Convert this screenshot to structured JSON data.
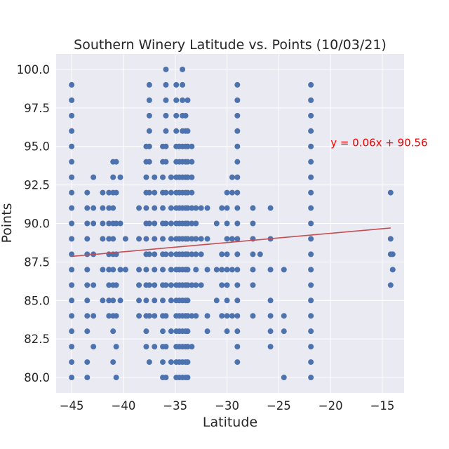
{
  "chart_data": {
    "type": "scatter",
    "title": "Southern Winery Latitude vs. Points (10/03/21)",
    "xlabel": "Latitude",
    "ylabel": "Points",
    "xlim": [
      -46.5,
      -12.9
    ],
    "ylim": [
      79.0,
      101.0
    ],
    "xticks": [
      -45,
      -40,
      -35,
      -30,
      -25,
      -20,
      -15
    ],
    "yticks": [
      80.0,
      82.5,
      85.0,
      87.5,
      90.0,
      92.5,
      95.0,
      97.5,
      100.0
    ],
    "xtick_labels": [
      "−45",
      "−40",
      "−35",
      "−30",
      "−25",
      "−20",
      "−15"
    ],
    "ytick_labels": [
      "80.0",
      "82.5",
      "85.0",
      "87.5",
      "90.0",
      "92.5",
      "95.0",
      "97.5",
      "100.0"
    ],
    "grid": true,
    "background": "#eaeaf2",
    "point_color": "#4c72b0",
    "line_color": "#c44e52",
    "regression": {
      "slope": 0.06,
      "intercept": 90.56,
      "x_range": [
        -45.0,
        -14.2
      ],
      "equation_label": "y = 0.06x + 90.56",
      "label_color": "#ff0000",
      "label_anchor": [
        -20.0,
        95.0
      ]
    },
    "columns": [
      {
        "x": -45.0,
        "y": [
          80,
          81,
          82,
          83,
          84,
          85,
          86,
          87,
          88,
          89,
          90,
          91,
          92,
          93,
          94,
          95,
          96,
          97,
          98,
          99
        ]
      },
      {
        "x": -43.5,
        "y": [
          80,
          81,
          83,
          84,
          85,
          86,
          87,
          88,
          89,
          90,
          91,
          92
        ]
      },
      {
        "x": -42.9,
        "y": [
          82,
          84,
          86,
          88,
          90,
          91,
          93
        ]
      },
      {
        "x": -42.0,
        "y": [
          85,
          87,
          89,
          90,
          91,
          92
        ]
      },
      {
        "x": -41.4,
        "y": [
          84,
          85,
          86,
          87,
          88,
          89,
          90,
          91,
          92
        ]
      },
      {
        "x": -41.0,
        "y": [
          81,
          83,
          84,
          85,
          86,
          87,
          88,
          89,
          90,
          91,
          92,
          93,
          94
        ]
      },
      {
        "x": -40.7,
        "y": [
          80,
          82,
          84,
          86,
          88,
          90,
          92,
          94
        ]
      },
      {
        "x": -40.3,
        "y": [
          85,
          87,
          90,
          93
        ]
      },
      {
        "x": -39.8,
        "y": [
          87,
          89
        ]
      },
      {
        "x": -38.5,
        "y": [
          84,
          85,
          86,
          87,
          89,
          91
        ]
      },
      {
        "x": -37.8,
        "y": [
          82,
          83,
          84,
          85,
          86,
          87,
          88,
          89,
          90,
          91,
          92,
          93,
          94,
          95
        ]
      },
      {
        "x": -37.5,
        "y": [
          81,
          84,
          86,
          88,
          90,
          92,
          94,
          95,
          96,
          97,
          98,
          99
        ]
      },
      {
        "x": -37.0,
        "y": [
          82,
          84,
          85,
          86,
          87,
          88,
          89,
          90,
          91,
          92,
          93
        ]
      },
      {
        "x": -36.2,
        "y": [
          80,
          81,
          82,
          83,
          84,
          85,
          86,
          87,
          88,
          89,
          90,
          91,
          92,
          93,
          94,
          95
        ]
      },
      {
        "x": -35.9,
        "y": [
          80,
          82,
          84,
          86,
          88,
          90,
          92,
          94,
          95,
          96,
          97,
          98,
          99,
          100
        ]
      },
      {
        "x": -35.4,
        "y": [
          81,
          83,
          85,
          86,
          87,
          88,
          89,
          90,
          91,
          92,
          93
        ]
      },
      {
        "x": -34.9,
        "y": [
          80,
          81,
          82,
          83,
          84,
          85,
          86,
          87,
          88,
          89,
          90,
          91,
          92,
          93,
          94,
          95,
          96,
          97,
          98,
          99
        ]
      },
      {
        "x": -34.6,
        "y": [
          80,
          81,
          82,
          83,
          84,
          85,
          86,
          87,
          88,
          89,
          90,
          91,
          92,
          93,
          94,
          95
        ]
      },
      {
        "x": -34.3,
        "y": [
          80,
          81,
          82,
          83,
          84,
          85,
          86,
          87,
          88,
          89,
          90,
          91,
          92,
          93,
          94,
          95,
          96,
          97,
          98,
          99,
          100
        ]
      },
      {
        "x": -34.0,
        "y": [
          80,
          81,
          82,
          83,
          84,
          85,
          86,
          87,
          88,
          89,
          90,
          91,
          92,
          93,
          94,
          95,
          96,
          97
        ]
      },
      {
        "x": -33.8,
        "y": [
          80,
          81,
          82,
          83,
          84,
          85,
          86,
          87,
          88,
          89,
          90,
          91,
          92,
          93,
          94,
          95,
          96,
          98
        ]
      },
      {
        "x": -33.4,
        "y": [
          82,
          84,
          86,
          88,
          89,
          90,
          91,
          92,
          93,
          94,
          95
        ]
      },
      {
        "x": -33.0,
        "y": [
          84,
          86,
          87,
          88,
          89,
          90,
          91
        ]
      },
      {
        "x": -32.5,
        "y": [
          86,
          88,
          89,
          91
        ]
      },
      {
        "x": -31.9,
        "y": [
          83,
          84,
          87,
          89,
          91
        ]
      },
      {
        "x": -31.0,
        "y": [
          85,
          87,
          90
        ]
      },
      {
        "x": -30.5,
        "y": [
          84,
          86,
          87,
          88,
          91
        ]
      },
      {
        "x": -30.0,
        "y": [
          83,
          84,
          85,
          86,
          87,
          88,
          89,
          90,
          91,
          92
        ]
      },
      {
        "x": -29.5,
        "y": [
          84,
          87,
          89,
          92,
          93
        ]
      },
      {
        "x": -29.0,
        "y": [
          81,
          82,
          83,
          84,
          85,
          86,
          87,
          88,
          89,
          90,
          91,
          92,
          93,
          94,
          95,
          96,
          97,
          98,
          99
        ]
      },
      {
        "x": -27.5,
        "y": [
          84,
          86,
          87,
          88,
          89,
          90,
          91
        ]
      },
      {
        "x": -26.8,
        "y": [
          88
        ]
      },
      {
        "x": -25.8,
        "y": [
          82,
          83,
          84,
          85,
          87,
          89,
          91
        ]
      },
      {
        "x": -24.5,
        "y": [
          80,
          83,
          84,
          87
        ]
      },
      {
        "x": -21.9,
        "y": [
          80,
          81,
          82,
          83,
          84,
          85,
          86,
          87,
          88,
          89,
          90,
          91,
          92,
          93,
          94,
          95,
          96,
          97,
          98,
          99
        ]
      },
      {
        "x": -14.2,
        "y": [
          86,
          88,
          89,
          92
        ]
      },
      {
        "x": -14.0,
        "y": [
          87,
          88
        ]
      }
    ]
  }
}
